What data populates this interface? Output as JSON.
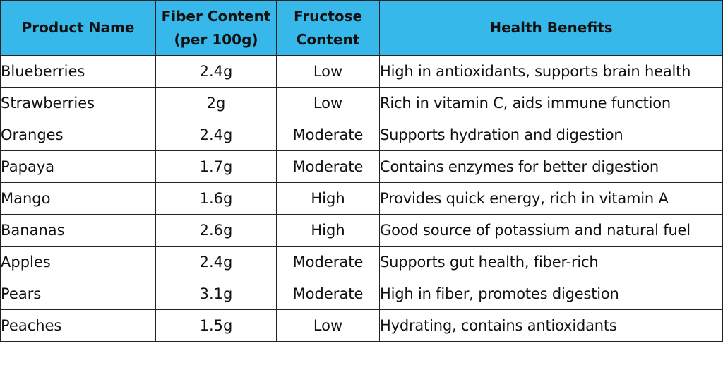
{
  "table": {
    "headers": {
      "product": "Product Name",
      "fiber_line1": "Fiber Content",
      "fiber_line2": "(per 100g)",
      "fructose_line1": "Fructose",
      "fructose_line2": "Content",
      "benefits": "Health Benefits"
    },
    "header_color": "#36b9ea",
    "rows": [
      {
        "name": "Blueberries",
        "fiber": "2.4g",
        "fructose": "Low",
        "benefit": "High in antioxidants, supports brain health"
      },
      {
        "name": "Strawberries",
        "fiber": "2g",
        "fructose": "Low",
        "benefit": "Rich in vitamin C, aids immune function"
      },
      {
        "name": "Oranges",
        "fiber": "2.4g",
        "fructose": "Moderate",
        "benefit": "Supports hydration and digestion"
      },
      {
        "name": "Papaya",
        "fiber": "1.7g",
        "fructose": "Moderate",
        "benefit": "Contains enzymes for better digestion"
      },
      {
        "name": "Mango",
        "fiber": "1.6g",
        "fructose": "High",
        "benefit": "Provides quick energy, rich in vitamin A"
      },
      {
        "name": "Bananas",
        "fiber": "2.6g",
        "fructose": "High",
        "benefit": "Good source of potassium and natural fuel"
      },
      {
        "name": "Apples",
        "fiber": "2.4g",
        "fructose": "Moderate",
        "benefit": "Supports gut health, fiber-rich"
      },
      {
        "name": "Pears",
        "fiber": "3.1g",
        "fructose": "Moderate",
        "benefit": "High in fiber, promotes digestion"
      },
      {
        "name": "Peaches",
        "fiber": "1.5g",
        "fructose": "Low",
        "benefit": "Hydrating, contains antioxidants"
      }
    ]
  }
}
